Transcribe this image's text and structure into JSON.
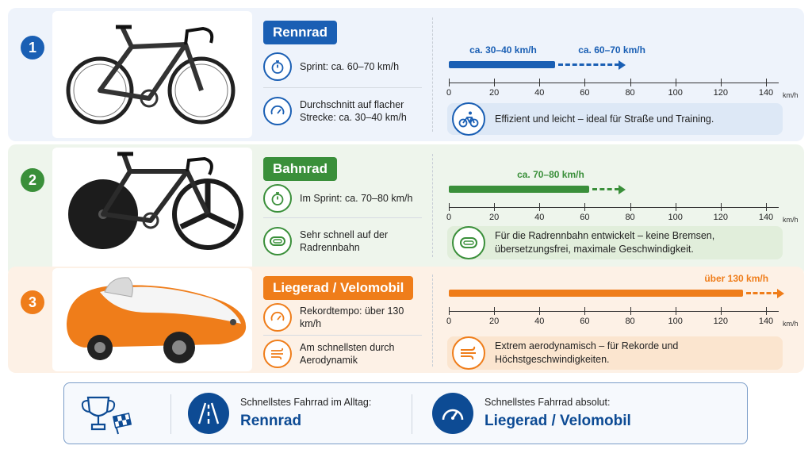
{
  "scale": {
    "max": 140,
    "ticks": [
      0,
      20,
      40,
      60,
      80,
      100,
      120,
      140
    ],
    "unit": "km/h"
  },
  "rows": [
    {
      "number": "1",
      "color": "#1a5fb4",
      "title": "Rennrad",
      "features": [
        "Sprint: ca. 60–70 km/h",
        "Durchschnitt auf flacher Strecke: ca. 30–40 km/h"
      ],
      "feature_icons": [
        "stopwatch-icon",
        "speedometer-icon"
      ],
      "bar_value": 47,
      "arrow_value": 78,
      "labels": [
        {
          "text": "ca. 30–40 km/h",
          "at": 24
        },
        {
          "text": "ca. 60–70 km/h",
          "at": 72
        }
      ],
      "note": "Effizient und leicht – ideal für Straße und Training.",
      "note_icon": "cyclist-icon",
      "note_bg": "#dde8f6"
    },
    {
      "number": "2",
      "color": "#3a8f3a",
      "title": "Bahnrad",
      "features": [
        "Im Sprint: ca. 70–80 km/h",
        "Sehr schnell auf der Radrennbahn"
      ],
      "feature_icons": [
        "stopwatch-icon",
        "velodrome-icon"
      ],
      "bar_value": 62,
      "arrow_value": 78,
      "labels": [
        {
          "text": "ca. 70–80 km/h",
          "at": 45
        }
      ],
      "note": "Für die Radrennbahn entwickelt – keine Bremsen, übersetzungsfrei, maximale Geschwindigkeit.",
      "note_icon": "velodrome-icon",
      "note_bg": "#e1eedb"
    },
    {
      "number": "3",
      "color": "#ef7d1a",
      "title": "Liegerad / Velomobil",
      "features": [
        "Rekordtempo: über 130 km/h",
        "Am schnellsten durch Aerodynamik"
      ],
      "feature_icons": [
        "speedometer-icon",
        "wind-icon"
      ],
      "bar_value": 130,
      "arrow_value": 148,
      "labels": [
        {
          "text": "über 130 km/h",
          "at": 127
        }
      ],
      "note": "Extrem aerodynamisch – für Rekorde und Höchstgeschwindigkeiten.",
      "note_icon": "wind-icon",
      "note_bg": "#fbe5cf"
    }
  ],
  "summary": {
    "everyday_label": "Schnellstes Fahrrad im Alltag:",
    "everyday_value": "Rennrad",
    "absolute_label": "Schnellstes Fahrrad absolut:",
    "absolute_value": "Liegerad / Velomobil",
    "icons": [
      "trophy-flag-icon",
      "road-icon",
      "speedometer-icon"
    ]
  }
}
